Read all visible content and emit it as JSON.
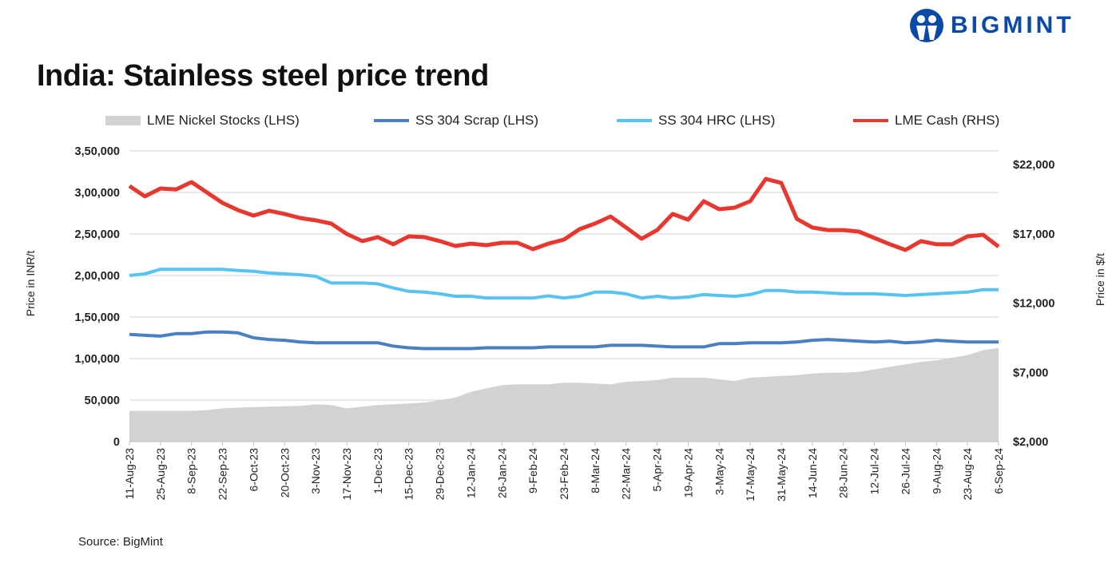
{
  "title": "India: Stainless steel price trend",
  "logo": {
    "text": "BIGMINT",
    "color": "#0a4aa6"
  },
  "source": "Source: BigMint",
  "chart_data": {
    "type": "line",
    "title": "India: Stainless steel price trend",
    "ylabel_left": "Price in INR/t",
    "ylabel_right": "Price in $/t",
    "ylim_left": [
      0,
      350000
    ],
    "ylim_right": [
      2000,
      22000
    ],
    "yticks_left": [
      "0",
      "50,000",
      "1,00,000",
      "1,50,000",
      "2,00,000",
      "2,50,000",
      "3,00,000",
      "3,50,000"
    ],
    "yticks_right": [
      "$2,000",
      "$7,000",
      "$12,000",
      "$17,000",
      "$22,000"
    ],
    "grid": true,
    "legend_placement": "top",
    "xtick_labels": [
      "11-Aug-23",
      "25-Aug-23",
      "8-Sep-23",
      "22-Sep-23",
      "6-Oct-23",
      "20-Oct-23",
      "3-Nov-23",
      "17-Nov-23",
      "1-Dec-23",
      "15-Dec-23",
      "29-Dec-23",
      "12-Jan-24",
      "26-Jan-24",
      "9-Feb-24",
      "23-Feb-24",
      "8-Mar-24",
      "22-Mar-24",
      "5-Apr-24",
      "19-Apr-24",
      "3-May-24",
      "17-May-24",
      "31-May-24",
      "14-Jun-24",
      "28-Jun-24",
      "12-Jul-24",
      "26-Jul-24",
      "9-Aug-24",
      "23-Aug-24",
      "6-Sep-24"
    ],
    "x_frequency": "weekly",
    "series": [
      {
        "name": "LME Nickel Stocks (LHS)",
        "type": "area",
        "axis": "left",
        "color": "#d1d2d4",
        "values": [
          37000,
          37000,
          37000,
          37000,
          37000,
          38000,
          40000,
          41000,
          41500,
          42000,
          42500,
          43000,
          45000,
          44000,
          40000,
          42000,
          44000,
          45000,
          46000,
          47000,
          50000,
          53000,
          60000,
          64000,
          68000,
          69000,
          69000,
          69000,
          71000,
          71000,
          70000,
          69000,
          72000,
          73000,
          74000,
          77000,
          77000,
          77000,
          75000,
          73000,
          77000,
          78000,
          79000,
          80000,
          82000,
          83000,
          83000,
          84000,
          87000,
          90000,
          93000,
          96000,
          98000,
          101000,
          104000,
          110000,
          113000
        ]
      },
      {
        "name": "SS 304 Scrap (LHS)",
        "type": "line",
        "axis": "left",
        "color": "#4a7fc1",
        "values": [
          129000,
          128000,
          127000,
          130000,
          130000,
          132000,
          132000,
          131000,
          125000,
          123000,
          122000,
          120000,
          119000,
          119000,
          119000,
          119000,
          119000,
          115000,
          113000,
          112000,
          112000,
          112000,
          112000,
          113000,
          113000,
          113000,
          113000,
          114000,
          114000,
          114000,
          114000,
          116000,
          116000,
          116000,
          115000,
          114000,
          114000,
          114000,
          118000,
          118000,
          119000,
          119000,
          119000,
          120000,
          122000,
          123000,
          122000,
          121000,
          120000,
          121000,
          119000,
          120000,
          122000,
          121000,
          120000,
          120000,
          120000
        ]
      },
      {
        "name": "SS 304 HRC (LHS)",
        "type": "line",
        "axis": "left",
        "color": "#56c3f0",
        "values": [
          200000,
          202000,
          207500,
          207500,
          207500,
          207500,
          207500,
          206000,
          205000,
          203000,
          202000,
          201000,
          199000,
          191000,
          191000,
          191000,
          190000,
          185000,
          181000,
          180000,
          178000,
          175000,
          175000,
          173000,
          173000,
          173000,
          173000,
          175500,
          173000,
          175000,
          180000,
          180000,
          178000,
          173000,
          175000,
          173000,
          174000,
          177000,
          176000,
          175000,
          177000,
          182000,
          182000,
          180000,
          180000,
          179000,
          178000,
          178000,
          178000,
          177000,
          176000,
          177000,
          178000,
          179000,
          180000,
          183000,
          183000
        ]
      },
      {
        "name": "LME Cash (RHS)",
        "type": "line",
        "axis": "right",
        "color": "#e8372f",
        "values": [
          20450,
          19700,
          20270,
          20200,
          20730,
          19980,
          19230,
          18710,
          18310,
          18660,
          18430,
          18140,
          17970,
          17740,
          16990,
          16470,
          16760,
          16240,
          16810,
          16760,
          16470,
          16120,
          16290,
          16180,
          16350,
          16350,
          15890,
          16290,
          16580,
          17330,
          17740,
          18250,
          17450,
          16640,
          17270,
          18430,
          18020,
          19350,
          18770,
          18890,
          19350,
          20960,
          20670,
          18080,
          17450,
          17270,
          17270,
          17160,
          16700,
          16240,
          15830,
          16470,
          16240,
          16240,
          16810,
          16930,
          16070
        ]
      }
    ]
  }
}
